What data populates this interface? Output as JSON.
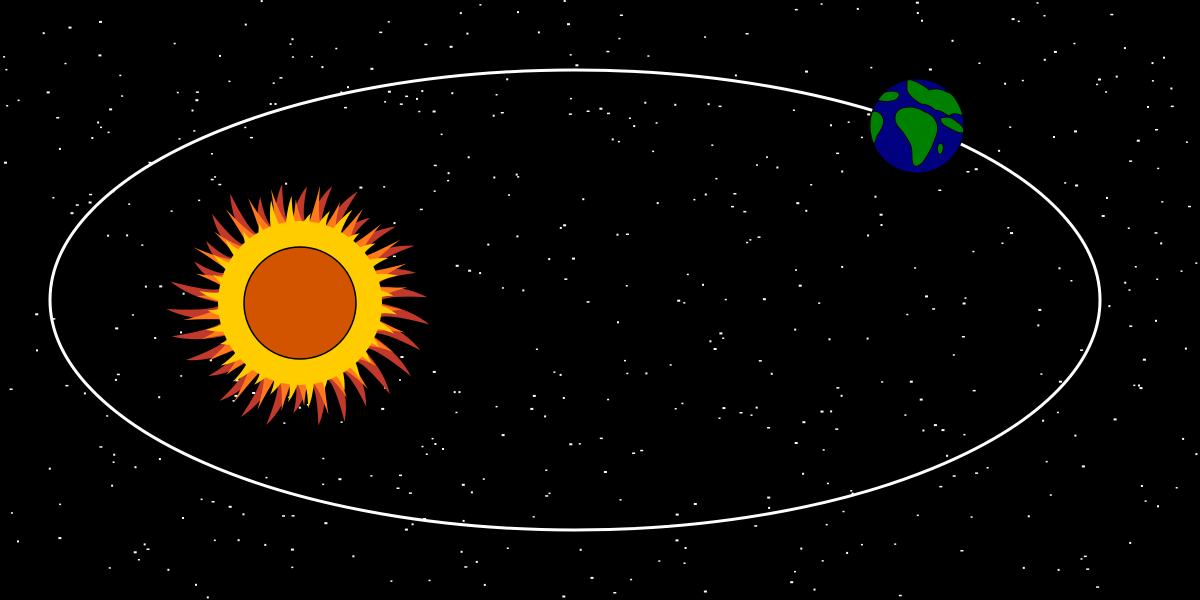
{
  "scene": {
    "background_color": "#000000",
    "star_color": "#ffffff",
    "orbit_color": "#ffffff"
  },
  "sun": {
    "icon": "sun-icon",
    "core_color": "#d35400",
    "corona_color": "#ffcc00",
    "flare_color": "#ff7a1a",
    "flare_outer_color": "#c0392b"
  },
  "earth": {
    "icon": "earth-icon",
    "ocean_color": "#000080",
    "land_color": "#008000"
  }
}
